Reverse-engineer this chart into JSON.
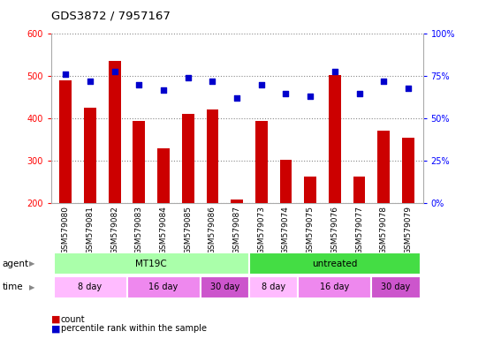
{
  "title": "GDS3872 / 7957167",
  "samples": [
    "GSM579080",
    "GSM579081",
    "GSM579082",
    "GSM579083",
    "GSM579084",
    "GSM579085",
    "GSM579086",
    "GSM579087",
    "GSM579073",
    "GSM579074",
    "GSM579075",
    "GSM579076",
    "GSM579077",
    "GSM579078",
    "GSM579079"
  ],
  "counts": [
    490,
    425,
    537,
    395,
    330,
    412,
    422,
    210,
    395,
    302,
    263,
    502,
    263,
    372,
    355
  ],
  "percentile": [
    76,
    72,
    78,
    70,
    67,
    74,
    72,
    62,
    70,
    65,
    63,
    78,
    65,
    72,
    68
  ],
  "bar_color": "#cc0000",
  "dot_color": "#0000cc",
  "ymin": 200,
  "ymax": 600,
  "yticks": [
    200,
    300,
    400,
    500,
    600
  ],
  "y2min": 0,
  "y2max": 100,
  "y2ticks": [
    0,
    25,
    50,
    75,
    100
  ],
  "agent_row": [
    {
      "label": "MT19C",
      "start": 0,
      "end": 8,
      "color": "#aaffaa"
    },
    {
      "label": "untreated",
      "start": 8,
      "end": 15,
      "color": "#44dd44"
    }
  ],
  "time_row": [
    {
      "label": "8 day",
      "start": 0,
      "end": 3,
      "color": "#ffbbff"
    },
    {
      "label": "16 day",
      "start": 3,
      "end": 6,
      "color": "#ee88ee"
    },
    {
      "label": "30 day",
      "start": 6,
      "end": 8,
      "color": "#cc55cc"
    },
    {
      "label": "8 day",
      "start": 8,
      "end": 10,
      "color": "#ffbbff"
    },
    {
      "label": "16 day",
      "start": 10,
      "end": 13,
      "color": "#ee88ee"
    },
    {
      "label": "30 day",
      "start": 13,
      "end": 15,
      "color": "#cc55cc"
    }
  ],
  "grid_color": "#888888"
}
